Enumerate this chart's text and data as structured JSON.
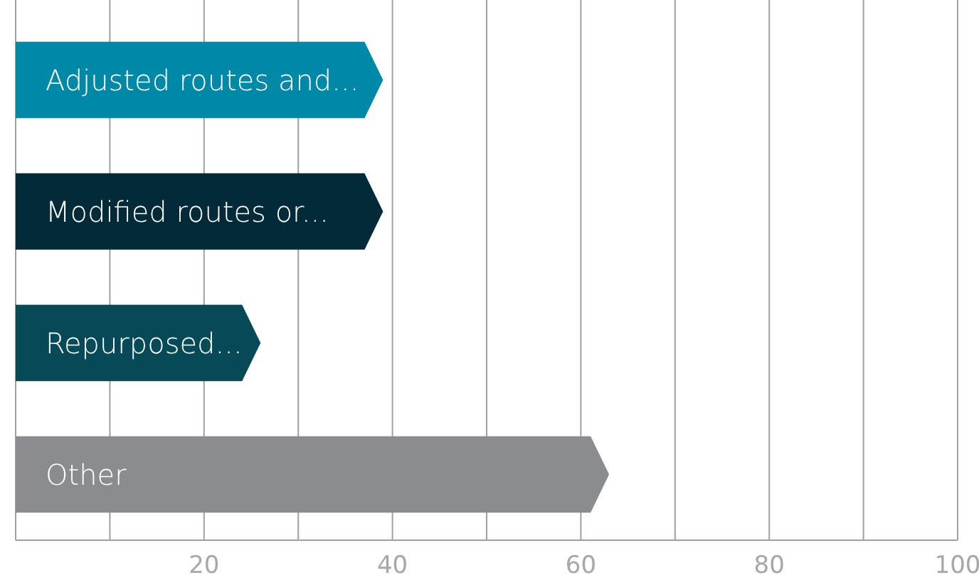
{
  "chart_data": {
    "type": "bar",
    "orientation": "horizontal",
    "categories": [
      "Adjusted routes and...",
      "Modified routes or...",
      "Repurposed...",
      "Other"
    ],
    "values": [
      39,
      39,
      26,
      63
    ],
    "colors": [
      "#0088a7",
      "#022a38",
      "#064a58",
      "#8b8c8f"
    ],
    "xlim": [
      0,
      100
    ],
    "xticks": [
      {
        "value": 0,
        "label": null
      },
      {
        "value": 10,
        "label": null
      },
      20,
      {
        "value": 30,
        "label": null
      },
      40,
      {
        "value": 50,
        "label": null
      },
      60,
      {
        "value": 70,
        "label": null
      },
      80,
      {
        "value": 90,
        "label": null
      },
      100
    ],
    "grid": "x"
  }
}
